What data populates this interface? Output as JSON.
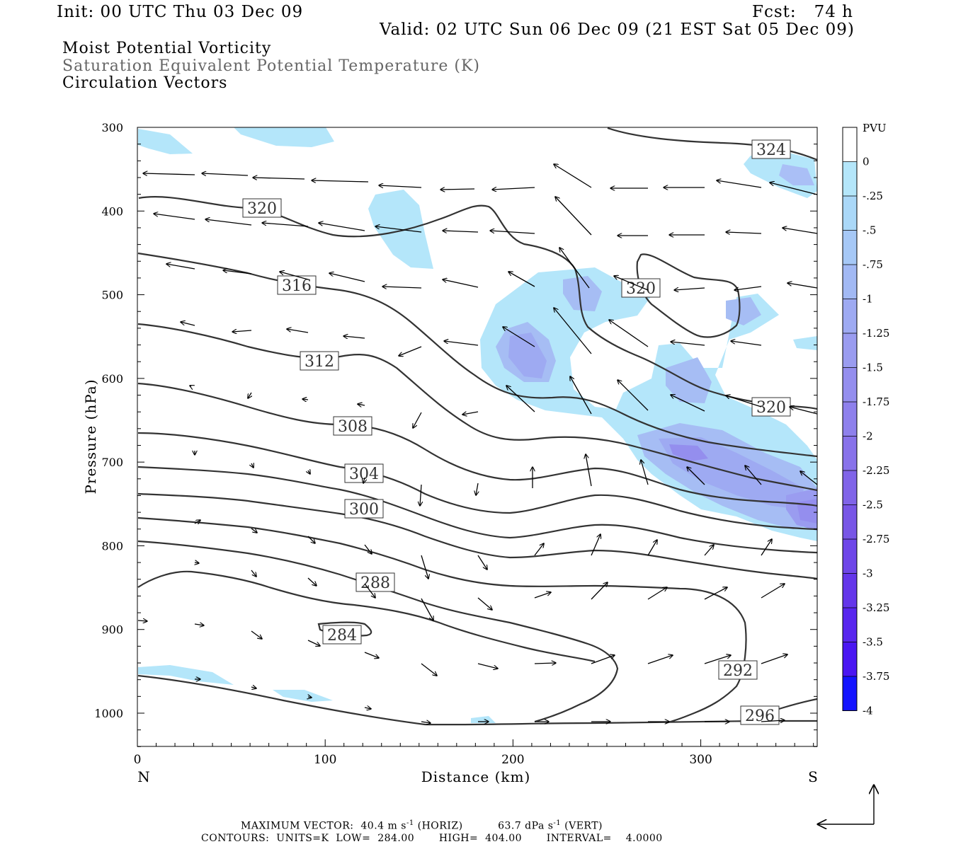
{
  "header": {
    "init": "Init: 00 UTC Thu 03 Dec 09",
    "fcst": "Fcst:   74 h",
    "valid": "Valid: 02 UTC Sun 06 Dec 09 (21 EST Sat 05 Dec 09)",
    "line1": "Moist Potential Vorticity",
    "line2": "Saturation Equivalent Potential Temperature (K)",
    "line3": "Circulation Vectors"
  },
  "footer": {
    "max_vector_label": "MAXIMUM VECTOR:",
    "horiz": "40.4 m s",
    "horiz_sup": "-1",
    "horiz_tail": " (HORIZ)",
    "vert": "63.7 dPa s",
    "vert_sup": "-1",
    "vert_tail": " (VERT)",
    "contours": "CONTOURS:  UNITS=K  LOW=  284.00       HIGH=  404.00       INTERVAL=    4.0000"
  },
  "chart_data": {
    "type": "cross-section",
    "xlabel": "Distance (km)",
    "ylabel": "Pressure (hPa)",
    "x_left_label": "N",
    "x_right_label": "S",
    "xlim": [
      0,
      362
    ],
    "ylim": [
      1040,
      300
    ],
    "x_ticks": [
      0,
      100,
      200,
      300
    ],
    "y_ticks": [
      300,
      400,
      500,
      600,
      700,
      800,
      900,
      1000
    ],
    "colorbar": {
      "unit": "PVU",
      "levels": [
        "0",
        "-.25",
        "-.5",
        "-.75",
        "-1",
        "-1.25",
        "-1.5",
        "-1.75",
        "-2",
        "-2.25",
        "-2.5",
        "-2.75",
        "-3",
        "-3.25",
        "-3.5",
        "-3.75",
        "-4"
      ],
      "colors": [
        "#ffffff",
        "#b4e6fa",
        "#aad8f8",
        "#a6c8f6",
        "#a2b9f4",
        "#9eaaf2",
        "#9a9cf0",
        "#948eee",
        "#8e80ec",
        "#8872ea",
        "#8064e8",
        "#7856e6",
        "#6e46e8",
        "#6436ea",
        "#5826ee",
        "#4a16f2",
        "#1414ff"
      ]
    },
    "contour_labels": [
      {
        "value": "324",
        "x": 327,
        "p": 326
      },
      {
        "value": "320",
        "x": 67,
        "p": 396
      },
      {
        "value": "320",
        "x": 268,
        "p": 493
      },
      {
        "value": "320",
        "x": 337,
        "p": 634
      },
      {
        "value": "316",
        "x": 84,
        "p": 491
      },
      {
        "value": "312",
        "x": 97,
        "p": 582
      },
      {
        "value": "308",
        "x": 114,
        "p": 658
      },
      {
        "value": "304",
        "x": 121,
        "p": 713
      },
      {
        "value": "300",
        "x": 121,
        "p": 756
      },
      {
        "value": "288",
        "x": 126,
        "p": 844
      },
      {
        "value": "284",
        "x": 109,
        "p": 908
      },
      {
        "value": "292",
        "x": 319,
        "p": 950
      },
      {
        "value": "296",
        "x": 330,
        "p": 1004
      }
    ]
  }
}
